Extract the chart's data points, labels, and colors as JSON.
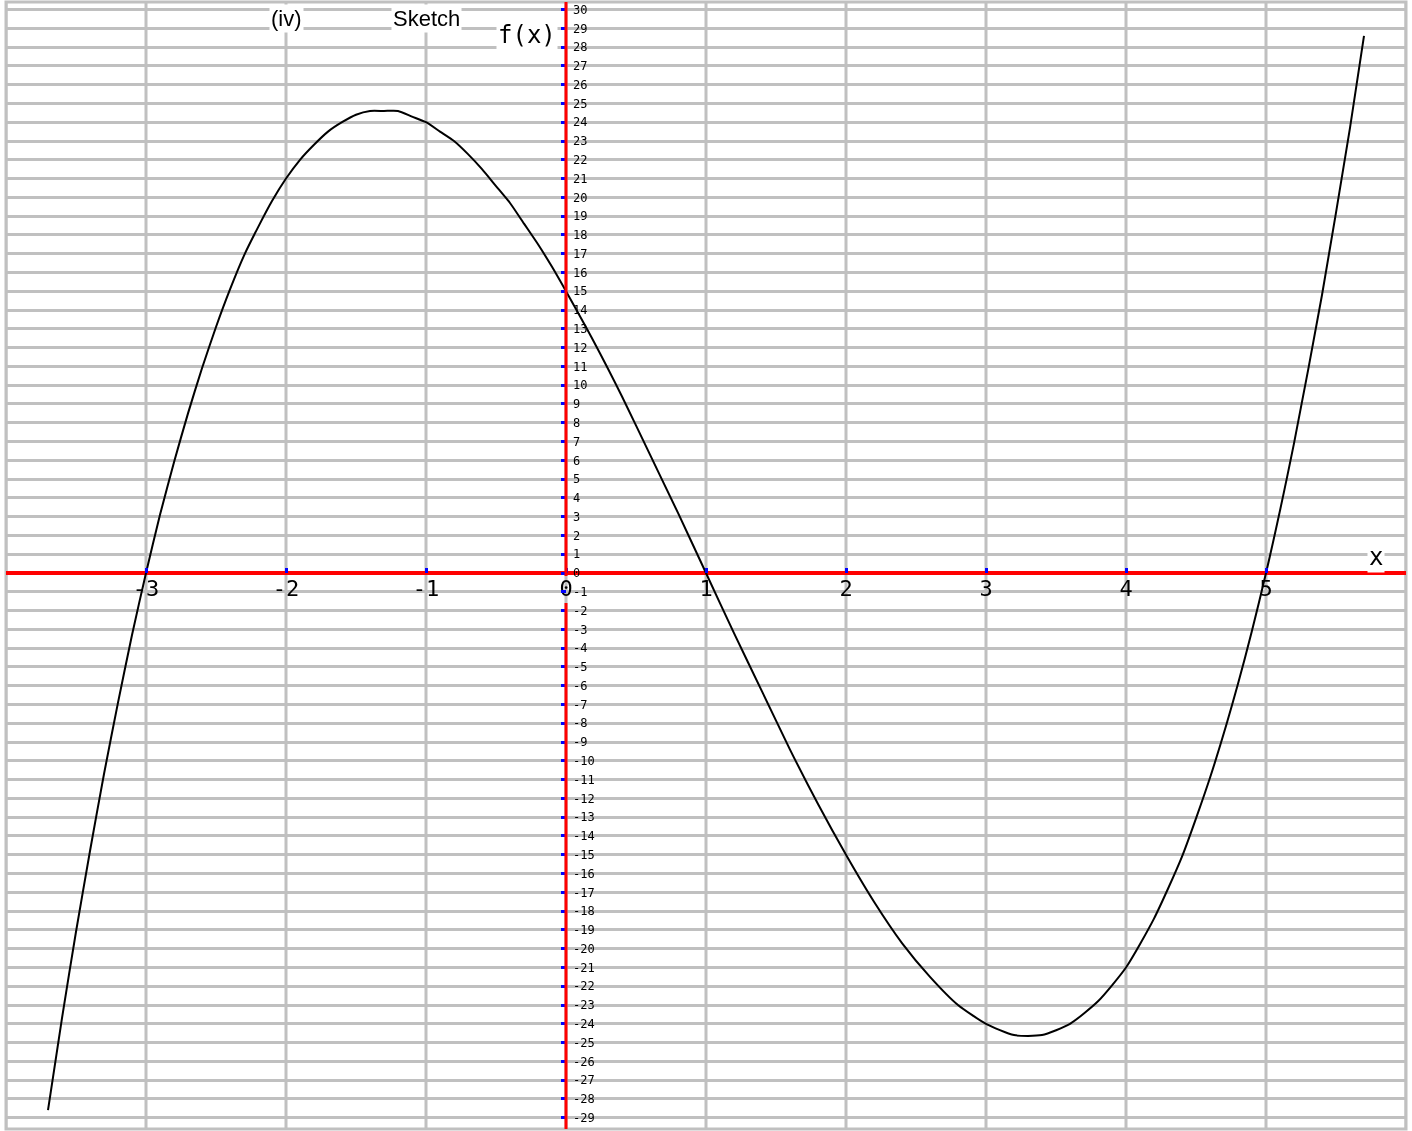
{
  "chart_data": {
    "type": "line",
    "annotations": [
      "(iv)",
      "Sketch"
    ],
    "xlabel": "x",
    "ylabel": "f(x)",
    "x": [
      -3.7,
      -3.6,
      -3.5,
      -3.4,
      -3.3,
      -3.2,
      -3.1,
      -3.0,
      -2.9,
      -2.8,
      -2.7,
      -2.6,
      -2.5,
      -2.4,
      -2.3,
      -2.2,
      -2.1,
      -2.0,
      -1.9,
      -1.8,
      -1.7,
      -1.6,
      -1.5,
      -1.4,
      -1.3,
      -1.2,
      -1.1,
      -1.0,
      -0.9,
      -0.8,
      -0.7,
      -0.6,
      -0.5,
      -0.4,
      -0.3,
      -0.2,
      -0.1,
      0,
      0.2,
      0.4,
      0.6,
      0.8,
      1.0,
      1.2,
      1.4,
      1.6,
      1.8,
      2.0,
      2.2,
      2.4,
      2.6,
      2.8,
      3.0,
      3.2,
      3.4,
      3.6,
      3.8,
      4.0,
      4.2,
      4.4,
      4.6,
      4.8,
      5.0,
      5.2,
      5.4,
      5.6,
      5.7
    ],
    "series": [
      {
        "color": "#000000",
        "values": [
          -28.6,
          -23.7,
          -19.1,
          -14.8,
          -10.7,
          -6.9,
          -3.3,
          0,
          3.1,
          5.9,
          8.5,
          10.9,
          13.1,
          15.1,
          16.9,
          18.4,
          19.8,
          21,
          22.0,
          22.8,
          23.5,
          24.0,
          24.4,
          24.6,
          24.6,
          24.6,
          24.3,
          24,
          23.5,
          23.0,
          22.3,
          21.5,
          20.6,
          19.7,
          18.6,
          17.5,
          16.3,
          15,
          12.3,
          9.4,
          6.3,
          3.2,
          0,
          -3.2,
          -6.3,
          -9.4,
          -12.3,
          -15,
          -17.5,
          -19.7,
          -21.5,
          -23.0,
          -24,
          -24.6,
          -24.6,
          -24.0,
          -22.8,
          -21,
          -18.4,
          -15.1,
          -10.9,
          -5.9,
          0,
          6.9,
          14.8,
          23.7,
          28.6
        ]
      }
    ],
    "xlim": [
      -4,
      6
    ],
    "xticks": [
      -3,
      -2,
      -1,
      0,
      1,
      2,
      3,
      4,
      5
    ],
    "ylim": [
      -29.6,
      30.4
    ],
    "yticks": [
      -29,
      -28,
      -27,
      -26,
      -25,
      -24,
      -23,
      -22,
      -21,
      -20,
      -19,
      -18,
      -17,
      -16,
      -15,
      -14,
      -13,
      -12,
      -11,
      -10,
      -9,
      -8,
      -7,
      -6,
      -5,
      -4,
      -3,
      -2,
      -1,
      0,
      1,
      2,
      3,
      4,
      5,
      6,
      7,
      8,
      9,
      10,
      11,
      12,
      13,
      14,
      15,
      16,
      17,
      18,
      19,
      20,
      21,
      22,
      23,
      24,
      25,
      26,
      27,
      28,
      29,
      30
    ],
    "grid": true,
    "marker": "none",
    "line_style": "solid"
  }
}
